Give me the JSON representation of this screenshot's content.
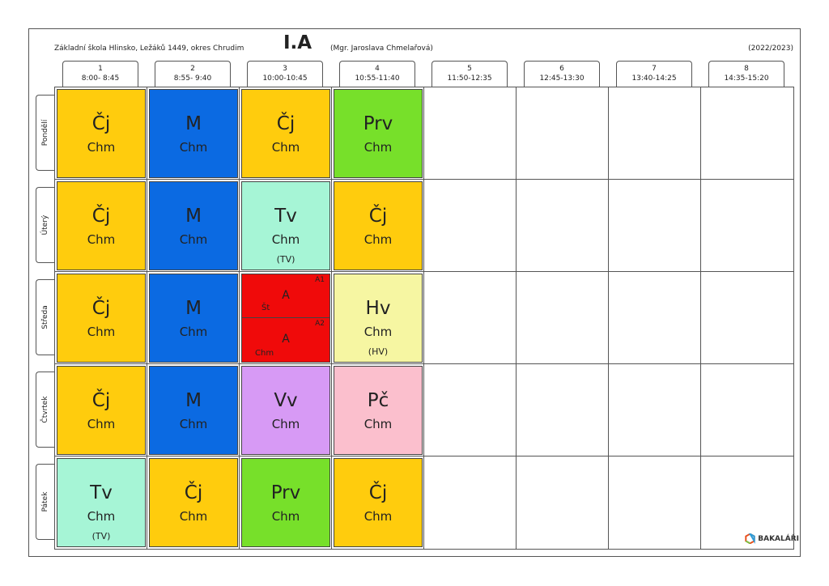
{
  "header": {
    "school": "Základní škola Hlinsko, Ležáků 1449, okres Chrudim",
    "class_name": "I.A",
    "teacher": "(Mgr. Jaroslava Chmelařová)",
    "year": "(2022/2023)"
  },
  "periods": [
    {
      "num": "1",
      "time": "8:00- 8:45"
    },
    {
      "num": "2",
      "time": "8:55- 9:40"
    },
    {
      "num": "3",
      "time": "10:00-10:45"
    },
    {
      "num": "4",
      "time": "10:55-11:40"
    },
    {
      "num": "5",
      "time": "11:50-12:35"
    },
    {
      "num": "6",
      "time": "12:45-13:30"
    },
    {
      "num": "7",
      "time": "13:40-14:25"
    },
    {
      "num": "8",
      "time": "14:35-15:20"
    }
  ],
  "days": [
    "Pondělí",
    "Úterý",
    "Středa",
    "Čtvrtek",
    "Pátek"
  ],
  "lessons": [
    {
      "day": 0,
      "period": 0,
      "subject": "Čj",
      "teacher": "Chm",
      "room": "",
      "color": "#ffcc0d"
    },
    {
      "day": 0,
      "period": 1,
      "subject": "M",
      "teacher": "Chm",
      "room": "",
      "color": "#0b6ae2"
    },
    {
      "day": 0,
      "period": 2,
      "subject": "Čj",
      "teacher": "Chm",
      "room": "",
      "color": "#ffcc0d"
    },
    {
      "day": 0,
      "period": 3,
      "subject": "Prv",
      "teacher": "Chm",
      "room": "",
      "color": "#77e02a"
    },
    {
      "day": 1,
      "period": 0,
      "subject": "Čj",
      "teacher": "Chm",
      "room": "",
      "color": "#ffcc0d"
    },
    {
      "day": 1,
      "period": 1,
      "subject": "M",
      "teacher": "Chm",
      "room": "",
      "color": "#0b6ae2"
    },
    {
      "day": 1,
      "period": 2,
      "subject": "Tv",
      "teacher": "Chm",
      "room": "(TV)",
      "color": "#a6f5d6"
    },
    {
      "day": 1,
      "period": 3,
      "subject": "Čj",
      "teacher": "Chm",
      "room": "",
      "color": "#ffcc0d"
    },
    {
      "day": 2,
      "period": 0,
      "subject": "Čj",
      "teacher": "Chm",
      "room": "",
      "color": "#ffcc0d"
    },
    {
      "day": 2,
      "period": 1,
      "subject": "M",
      "teacher": "Chm",
      "room": "",
      "color": "#0b6ae2"
    },
    {
      "day": 2,
      "period": 3,
      "subject": "Hv",
      "teacher": "Chm",
      "room": "(HV)",
      "color": "#f6f6a2"
    },
    {
      "day": 3,
      "period": 0,
      "subject": "Čj",
      "teacher": "Chm",
      "room": "",
      "color": "#ffcc0d"
    },
    {
      "day": 3,
      "period": 1,
      "subject": "M",
      "teacher": "Chm",
      "room": "",
      "color": "#0b6ae2"
    },
    {
      "day": 3,
      "period": 2,
      "subject": "Vv",
      "teacher": "Chm",
      "room": "",
      "color": "#d79af5"
    },
    {
      "day": 3,
      "period": 3,
      "subject": "Pč",
      "teacher": "Chm",
      "room": "",
      "color": "#fbbfcd"
    },
    {
      "day": 4,
      "period": 0,
      "subject": "Tv",
      "teacher": "Chm",
      "room": "(TV)",
      "color": "#a6f5d6"
    },
    {
      "day": 4,
      "period": 1,
      "subject": "Čj",
      "teacher": "Chm",
      "room": "",
      "color": "#ffcc0d"
    },
    {
      "day": 4,
      "period": 2,
      "subject": "Prv",
      "teacher": "Chm",
      "room": "",
      "color": "#77e02a"
    },
    {
      "day": 4,
      "period": 3,
      "subject": "Čj",
      "teacher": "Chm",
      "room": "",
      "color": "#ffcc0d"
    }
  ],
  "split_lesson": {
    "day": 2,
    "period": 2,
    "color": "#f00a0a",
    "groups": [
      {
        "group": "A1",
        "subject": "A",
        "teacher": "Št"
      },
      {
        "group": "A2",
        "subject": "A",
        "teacher": "Chm"
      }
    ]
  },
  "brand": {
    "name": "BAKALÁŘI",
    "icon": "bakalari-logo-icon"
  }
}
